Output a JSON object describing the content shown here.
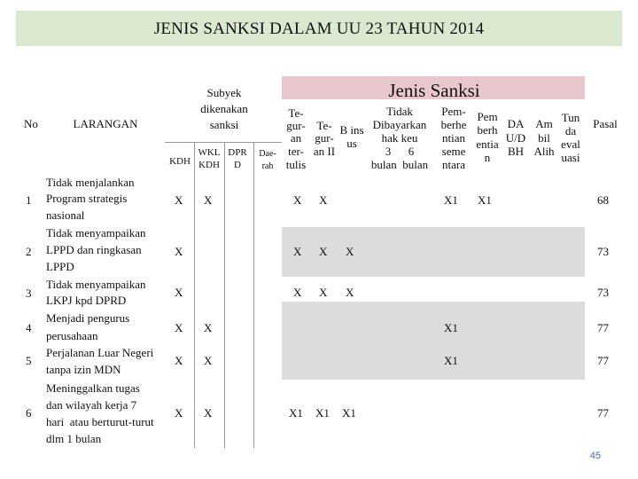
{
  "title": "JENIS SANKSI DALAM UU 23 TAHUN 2014",
  "page_number": "45",
  "header": {
    "no": "No",
    "larangan": "LARANGAN",
    "subyek": [
      "Subyek",
      "dikenakan",
      "sanksi"
    ],
    "subyek_cols": {
      "kdh": "KDH",
      "wkl": [
        "WKL",
        "KDH"
      ],
      "dprd": [
        "DPR",
        "D"
      ],
      "daerah": [
        "Dae-",
        "rah"
      ]
    },
    "jenis_sanksi": "Jenis Sanksi",
    "sanksi_cols": {
      "teguran_tertulis": [
        "Te-",
        "gur-",
        "an",
        "ter-",
        "tulis"
      ],
      "teguran_ii": [
        "Te-",
        "gur-",
        "an II"
      ],
      "bins": [
        "B ins",
        "us"
      ],
      "tidak_dibayarkan": [
        "Tidak",
        "Dibayarkan",
        "hak keu",
        "3      6",
        "bulan  bulan"
      ],
      "pemberhentian_sementara": [
        "Pem-",
        "berhe",
        "ntian",
        "seme",
        "ntara"
      ],
      "pemberhentian": [
        "Pem",
        "berh",
        "entia",
        "n"
      ],
      "da": [
        "DA",
        "U/D",
        "BH"
      ],
      "am": [
        "Am",
        "bil",
        "Alih"
      ],
      "tun": [
        "Tun",
        "da",
        "eval",
        "uasi"
      ],
      "pasal": "Pasal"
    }
  },
  "rows": [
    {
      "no": "1",
      "larangan": [
        "Tidak menjalankan",
        "Program strategis",
        "nasional"
      ],
      "kdh": "X",
      "wkl": "X",
      "dprd": "",
      "daerah": "",
      "tegur1": "X",
      "tegur2": "X",
      "bins": "",
      "tidak_bayar": "",
      "pem_sementara": "X1",
      "pem": "X1",
      "da": "",
      "am": "",
      "tun": "",
      "pasal": "68"
    },
    {
      "no": "2",
      "larangan": [
        "Tidak menyampaikan",
        "LPPD dan ringkasan",
        "LPPD"
      ],
      "kdh": "X",
      "wkl": "",
      "dprd": "",
      "daerah": "",
      "tegur1": "X",
      "tegur2": "X",
      "bins": "X",
      "tidak_bayar": "",
      "pem_sementara": "",
      "pem": "",
      "da": "",
      "am": "",
      "tun": "",
      "pasal": "73"
    },
    {
      "no": "3",
      "larangan": [
        "Tidak menyampaikan",
        "LKPJ kpd DPRD"
      ],
      "kdh": "X",
      "wkl": "",
      "dprd": "",
      "daerah": "",
      "tegur1": "X",
      "tegur2": "X",
      "bins": "X",
      "tidak_bayar": "",
      "pem_sementara": "",
      "pem": "",
      "da": "",
      "am": "",
      "tun": "",
      "pasal": "73"
    },
    {
      "no": "4",
      "larangan": [
        "Menjadi pengurus",
        "perusahaan"
      ],
      "kdh": "X",
      "wkl": "X",
      "dprd": "",
      "daerah": "",
      "tegur1": "",
      "tegur2": "",
      "bins": "",
      "tidak_bayar": "",
      "pem_sementara": "X1",
      "pem": "",
      "da": "",
      "am": "",
      "tun": "",
      "pasal": "77"
    },
    {
      "no": "5",
      "larangan": [
        "Perjalanan Luar Negeri",
        "tanpa izin MDN"
      ],
      "kdh": "X",
      "wkl": "X",
      "dprd": "",
      "daerah": "",
      "tegur1": "",
      "tegur2": "",
      "bins": "",
      "tidak_bayar": "",
      "pem_sementara": "X1",
      "pem": "",
      "da": "",
      "am": "",
      "tun": "",
      "pasal": "77"
    },
    {
      "no": "6",
      "larangan": [
        "Meninggalkan tugas",
        "dan wilayah kerja 7",
        "hari  atau berturut-turut",
        "dlm 1 bulan"
      ],
      "kdh": "X",
      "wkl": "X",
      "dprd": "",
      "daerah": "",
      "tegur1": "X1",
      "tegur2": "X1",
      "bins": "X1",
      "tidak_bayar": "",
      "pem_sementara": "",
      "pem": "",
      "da": "",
      "am": "",
      "tun": "",
      "pasal": "77"
    }
  ],
  "colors": {
    "title_bg": "#dbe8d0",
    "jenis_bg": "#e8c8cd",
    "grey_band": "#dcdcdc",
    "page_number": "#4b6aa0"
  }
}
